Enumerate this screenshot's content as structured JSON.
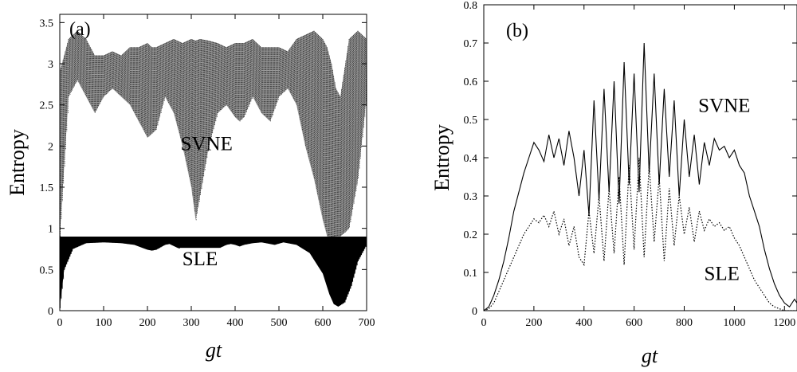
{
  "chart_data": [
    {
      "type": "line",
      "panel_label": "(a)",
      "xlabel": "gt",
      "ylabel": "Entropy",
      "xlim": [
        0,
        700
      ],
      "ylim": [
        0,
        3.6
      ],
      "xticks": [
        "0",
        "100",
        "200",
        "300",
        "400",
        "500",
        "600",
        "700"
      ],
      "yticks": [
        "0",
        "0.5",
        "1",
        "1.5",
        "2",
        "2.5",
        "3",
        "3.5"
      ],
      "annotations": [
        {
          "text": "SVNE",
          "x": 335,
          "y": 1.95
        },
        {
          "text": "SLE",
          "x": 320,
          "y": 0.55
        }
      ],
      "grid": false,
      "series": [
        {
          "name": "SVNE",
          "style": "dotted-dense",
          "x": [
            0,
            20,
            40,
            60,
            80,
            100,
            120,
            140,
            160,
            180,
            200,
            210,
            220,
            240,
            260,
            280,
            300,
            310,
            320,
            340,
            360,
            380,
            400,
            410,
            420,
            440,
            460,
            480,
            500,
            520,
            540,
            560,
            580,
            600,
            610,
            620,
            630,
            640,
            660,
            680,
            700
          ],
          "upper": [
            2.9,
            3.3,
            3.4,
            3.3,
            3.1,
            3.1,
            3.15,
            3.1,
            3.2,
            3.2,
            3.25,
            3.2,
            3.2,
            3.25,
            3.3,
            3.25,
            3.3,
            3.28,
            3.3,
            3.28,
            3.25,
            3.2,
            3.25,
            3.25,
            3.25,
            3.3,
            3.2,
            3.2,
            3.2,
            3.15,
            3.3,
            3.35,
            3.4,
            3.3,
            3.2,
            3.0,
            2.7,
            2.6,
            3.3,
            3.4,
            3.3
          ],
          "lower": [
            0.9,
            2.6,
            2.8,
            2.6,
            2.4,
            2.6,
            2.7,
            2.6,
            2.5,
            2.3,
            2.1,
            2.15,
            2.2,
            2.6,
            2.4,
            2.0,
            1.5,
            1.1,
            1.4,
            2.0,
            2.4,
            2.5,
            2.35,
            2.3,
            2.35,
            2.6,
            2.4,
            2.3,
            2.6,
            2.7,
            2.5,
            2.0,
            1.6,
            1.1,
            0.9,
            0.85,
            0.88,
            0.9,
            1.0,
            1.6,
            2.6
          ]
        },
        {
          "name": "SLE",
          "style": "dense-filled",
          "x": [
            0,
            10,
            30,
            60,
            100,
            140,
            170,
            190,
            200,
            210,
            220,
            240,
            250,
            270,
            280,
            300,
            310,
            320,
            340,
            360,
            380,
            390,
            400,
            410,
            420,
            440,
            460,
            470,
            490,
            510,
            540,
            570,
            600,
            615,
            625,
            635,
            650,
            665,
            680,
            700
          ],
          "upper": [
            0.9,
            0.9,
            0.9,
            0.9,
            0.9,
            0.9,
            0.9,
            0.9,
            0.9,
            0.9,
            0.9,
            0.9,
            0.9,
            0.9,
            0.9,
            0.9,
            0.9,
            0.9,
            0.9,
            0.9,
            0.9,
            0.9,
            0.9,
            0.9,
            0.9,
            0.9,
            0.9,
            0.9,
            0.9,
            0.9,
            0.9,
            0.9,
            0.9,
            0.9,
            0.9,
            0.9,
            0.9,
            0.9,
            0.9,
            0.9
          ],
          "lower": [
            0.03,
            0.5,
            0.75,
            0.82,
            0.83,
            0.82,
            0.8,
            0.76,
            0.74,
            0.73,
            0.74,
            0.8,
            0.81,
            0.76,
            0.75,
            0.65,
            0.57,
            0.55,
            0.62,
            0.75,
            0.8,
            0.81,
            0.8,
            0.78,
            0.8,
            0.82,
            0.83,
            0.82,
            0.8,
            0.83,
            0.8,
            0.7,
            0.45,
            0.2,
            0.08,
            0.05,
            0.1,
            0.3,
            0.6,
            0.8
          ]
        }
      ]
    },
    {
      "type": "line",
      "panel_label": "(b)",
      "xlabel": "gt",
      "ylabel": "Entropy",
      "xlim": [
        0,
        1250
      ],
      "ylim": [
        0,
        0.8
      ],
      "xticks": [
        "0",
        "200",
        "400",
        "600",
        "800",
        "1000",
        "1200"
      ],
      "yticks": [
        "0",
        "0.1",
        "0.2",
        "0.3",
        "0.4",
        "0.5",
        "0.6",
        "0.7",
        "0.8"
      ],
      "annotations": [
        {
          "text": "SVNE",
          "x": 960,
          "y": 0.52
        },
        {
          "text": "SLE",
          "x": 950,
          "y": 0.08
        }
      ],
      "grid": false,
      "series": [
        {
          "name": "SVNE",
          "style": "solid",
          "x": [
            0,
            20,
            40,
            60,
            80,
            100,
            120,
            140,
            160,
            180,
            200,
            220,
            240,
            260,
            280,
            300,
            320,
            340,
            360,
            380,
            400,
            420,
            440,
            460,
            480,
            500,
            520,
            540,
            560,
            580,
            600,
            620,
            640,
            660,
            680,
            700,
            720,
            740,
            760,
            780,
            800,
            820,
            840,
            860,
            880,
            900,
            920,
            940,
            960,
            980,
            1000,
            1020,
            1040,
            1060,
            1080,
            1100,
            1120,
            1140,
            1160,
            1180,
            1200,
            1220,
            1240,
            1250
          ],
          "y": [
            0.0,
            0.01,
            0.04,
            0.08,
            0.13,
            0.19,
            0.26,
            0.31,
            0.36,
            0.4,
            0.44,
            0.42,
            0.39,
            0.46,
            0.4,
            0.45,
            0.38,
            0.47,
            0.4,
            0.3,
            0.42,
            0.25,
            0.55,
            0.29,
            0.58,
            0.31,
            0.6,
            0.28,
            0.65,
            0.33,
            0.62,
            0.31,
            0.7,
            0.36,
            0.62,
            0.33,
            0.58,
            0.35,
            0.55,
            0.3,
            0.5,
            0.35,
            0.46,
            0.33,
            0.44,
            0.38,
            0.45,
            0.42,
            0.43,
            0.4,
            0.42,
            0.38,
            0.36,
            0.3,
            0.26,
            0.22,
            0.16,
            0.11,
            0.07,
            0.04,
            0.02,
            0.01,
            0.03,
            0.02
          ]
        },
        {
          "name": "SLE",
          "style": "dotted",
          "x": [
            0,
            20,
            40,
            60,
            80,
            100,
            120,
            140,
            160,
            180,
            200,
            220,
            240,
            260,
            280,
            300,
            320,
            340,
            360,
            380,
            400,
            420,
            440,
            460,
            480,
            500,
            520,
            540,
            560,
            580,
            600,
            620,
            640,
            660,
            680,
            700,
            720,
            740,
            760,
            780,
            800,
            820,
            840,
            860,
            880,
            900,
            920,
            940,
            960,
            980,
            1000,
            1020,
            1040,
            1060,
            1080,
            1100,
            1120,
            1140,
            1160,
            1180,
            1200,
            1220,
            1240,
            1250
          ],
          "y": [
            0.0,
            0.005,
            0.02,
            0.05,
            0.08,
            0.11,
            0.14,
            0.17,
            0.2,
            0.22,
            0.24,
            0.23,
            0.25,
            0.22,
            0.26,
            0.2,
            0.24,
            0.17,
            0.22,
            0.14,
            0.12,
            0.26,
            0.15,
            0.3,
            0.13,
            0.32,
            0.15,
            0.35,
            0.12,
            0.38,
            0.16,
            0.4,
            0.14,
            0.38,
            0.18,
            0.35,
            0.13,
            0.32,
            0.17,
            0.3,
            0.2,
            0.27,
            0.18,
            0.26,
            0.21,
            0.24,
            0.22,
            0.23,
            0.21,
            0.22,
            0.19,
            0.17,
            0.14,
            0.11,
            0.08,
            0.06,
            0.04,
            0.02,
            0.01,
            0.005,
            0.0,
            0.0,
            0.0,
            0.0
          ]
        }
      ]
    }
  ]
}
